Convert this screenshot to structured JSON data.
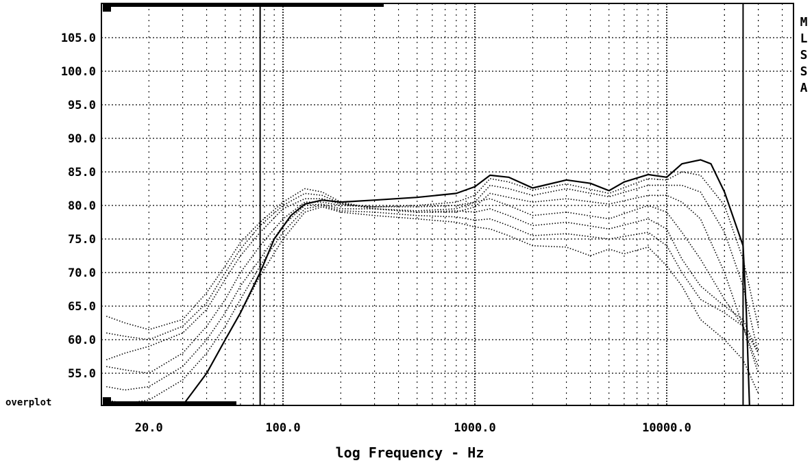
{
  "side_label": [
    "M",
    "L",
    "S",
    "S",
    "A"
  ],
  "overplot_label": "overplot",
  "chart_data": {
    "type": "line",
    "title": "",
    "xlabel": "log Frequency - Hz",
    "ylabel": "",
    "x_scale": "log",
    "xlim": [
      10,
      40000
    ],
    "ylim": [
      50,
      110
    ],
    "y_ticks": [
      55.0,
      60.0,
      65.0,
      70.0,
      75.0,
      80.0,
      85.0,
      90.0,
      95.0,
      100.0,
      105.0
    ],
    "y_tick_labels": [
      "55.0",
      "60.0",
      "65.0",
      "70.0",
      "75.0",
      "80.0",
      "85.0",
      "90.0",
      "95.0",
      "100.0",
      "105.0"
    ],
    "x_tick_labels": [
      {
        "value": 20,
        "label": "20.0"
      },
      {
        "value": 100,
        "label": "100.0"
      },
      {
        "value": 1000,
        "label": "1000.0"
      },
      {
        "value": 10000,
        "label": "10000.0"
      }
    ],
    "grid": true,
    "cursors": [
      76,
      25000
    ],
    "series": [
      {
        "style": "solid",
        "points": [
          [
            30,
            50
          ],
          [
            40,
            55
          ],
          [
            50,
            60
          ],
          [
            60,
            64
          ],
          [
            76,
            70
          ],
          [
            90,
            75
          ],
          [
            110,
            78.5
          ],
          [
            130,
            80.2
          ],
          [
            160,
            80.8
          ],
          [
            200,
            80.5
          ],
          [
            300,
            80.8
          ],
          [
            500,
            81.2
          ],
          [
            800,
            81.8
          ],
          [
            1000,
            82.8
          ],
          [
            1200,
            84.5
          ],
          [
            1500,
            84.2
          ],
          [
            2000,
            82.6
          ],
          [
            3000,
            83.8
          ],
          [
            4000,
            83.3
          ],
          [
            5000,
            82.2
          ],
          [
            6000,
            83.5
          ],
          [
            8000,
            84.6
          ],
          [
            10000,
            84.2
          ],
          [
            12000,
            86.2
          ],
          [
            15000,
            86.8
          ],
          [
            17000,
            86.2
          ],
          [
            20000,
            82
          ],
          [
            25000,
            74
          ],
          [
            26000,
            64
          ],
          [
            27000,
            50
          ]
        ]
      },
      {
        "style": "dotted",
        "points": [
          [
            12,
            63.5
          ],
          [
            15,
            62.5
          ],
          [
            20,
            61.5
          ],
          [
            30,
            63
          ],
          [
            40,
            67
          ],
          [
            50,
            71
          ],
          [
            60,
            74.5
          ],
          [
            76,
            77.5
          ],
          [
            100,
            80.5
          ],
          [
            130,
            82.5
          ],
          [
            160,
            82
          ],
          [
            200,
            80.5
          ],
          [
            300,
            79.5
          ],
          [
            500,
            79
          ],
          [
            800,
            79
          ],
          [
            1000,
            79.8
          ],
          [
            1200,
            81.8
          ],
          [
            1500,
            81.2
          ],
          [
            2000,
            80.5
          ],
          [
            3000,
            81
          ],
          [
            5000,
            80.2
          ],
          [
            8000,
            81.5
          ],
          [
            10000,
            81.5
          ],
          [
            12000,
            80.5
          ],
          [
            15000,
            78
          ],
          [
            20000,
            70
          ],
          [
            25000,
            62
          ],
          [
            30000,
            55
          ]
        ]
      },
      {
        "style": "dotted",
        "points": [
          [
            12,
            61
          ],
          [
            15,
            60.5
          ],
          [
            20,
            60
          ],
          [
            30,
            62
          ],
          [
            40,
            65.5
          ],
          [
            50,
            70
          ],
          [
            60,
            73.5
          ],
          [
            76,
            77
          ],
          [
            100,
            80
          ],
          [
            130,
            81.8
          ],
          [
            160,
            81.5
          ],
          [
            200,
            80.3
          ],
          [
            300,
            79.5
          ],
          [
            500,
            79.2
          ],
          [
            800,
            79.5
          ],
          [
            1000,
            80.5
          ],
          [
            1200,
            83
          ],
          [
            1500,
            82.5
          ],
          [
            2000,
            81.5
          ],
          [
            3000,
            82.5
          ],
          [
            5000,
            81.3
          ],
          [
            8000,
            83
          ],
          [
            10000,
            83
          ],
          [
            12000,
            83
          ],
          [
            15000,
            82
          ],
          [
            20000,
            76
          ],
          [
            25000,
            68
          ],
          [
            30000,
            58
          ]
        ]
      },
      {
        "style": "dotted",
        "points": [
          [
            12,
            57
          ],
          [
            15,
            58
          ],
          [
            20,
            59
          ],
          [
            30,
            61
          ],
          [
            40,
            64.5
          ],
          [
            50,
            69
          ],
          [
            60,
            72.5
          ],
          [
            76,
            76
          ],
          [
            100,
            79.5
          ],
          [
            130,
            81
          ],
          [
            160,
            81
          ],
          [
            200,
            80.2
          ],
          [
            300,
            79.8
          ],
          [
            500,
            80
          ],
          [
            800,
            80.5
          ],
          [
            1000,
            81.5
          ],
          [
            1200,
            84
          ],
          [
            1500,
            83.5
          ],
          [
            2000,
            82.3
          ],
          [
            3000,
            83.2
          ],
          [
            5000,
            81.8
          ],
          [
            8000,
            84
          ],
          [
            10000,
            83.8
          ],
          [
            12000,
            85
          ],
          [
            15000,
            84.5
          ],
          [
            20000,
            80
          ],
          [
            25000,
            72
          ],
          [
            30000,
            62
          ]
        ]
      },
      {
        "style": "dotted",
        "points": [
          [
            12,
            56
          ],
          [
            15,
            55.5
          ],
          [
            20,
            55
          ],
          [
            30,
            58
          ],
          [
            40,
            62
          ],
          [
            50,
            66
          ],
          [
            60,
            70
          ],
          [
            76,
            74
          ],
          [
            100,
            78
          ],
          [
            130,
            80.5
          ],
          [
            160,
            80.5
          ],
          [
            200,
            80
          ],
          [
            300,
            79.8
          ],
          [
            500,
            79.8
          ],
          [
            800,
            80
          ],
          [
            1000,
            80.5
          ],
          [
            1200,
            81
          ],
          [
            1500,
            80
          ],
          [
            2000,
            78.5
          ],
          [
            3000,
            79
          ],
          [
            5000,
            78
          ],
          [
            8000,
            80
          ],
          [
            10000,
            79
          ],
          [
            12000,
            76
          ],
          [
            15000,
            72
          ],
          [
            20000,
            66
          ],
          [
            25000,
            62
          ],
          [
            30000,
            58
          ]
        ]
      },
      {
        "style": "dotted",
        "points": [
          [
            12,
            53
          ],
          [
            15,
            52.5
          ],
          [
            20,
            53
          ],
          [
            30,
            56
          ],
          [
            40,
            60
          ],
          [
            50,
            64
          ],
          [
            60,
            68
          ],
          [
            76,
            72
          ],
          [
            100,
            77
          ],
          [
            130,
            80
          ],
          [
            160,
            80.2
          ],
          [
            200,
            79.5
          ],
          [
            300,
            79.5
          ],
          [
            500,
            79
          ],
          [
            800,
            79.2
          ],
          [
            1000,
            79
          ],
          [
            1200,
            79.5
          ],
          [
            1500,
            78.5
          ],
          [
            2000,
            77
          ],
          [
            3000,
            77.5
          ],
          [
            5000,
            76.5
          ],
          [
            8000,
            78
          ],
          [
            10000,
            76.5
          ],
          [
            12000,
            72
          ],
          [
            15000,
            68
          ],
          [
            20000,
            65
          ],
          [
            25000,
            63
          ],
          [
            30000,
            58
          ]
        ]
      },
      {
        "style": "dotted",
        "points": [
          [
            12,
            51
          ],
          [
            15,
            50.5
          ],
          [
            20,
            51
          ],
          [
            30,
            54
          ],
          [
            40,
            58
          ],
          [
            50,
            62
          ],
          [
            60,
            66
          ],
          [
            76,
            71
          ],
          [
            100,
            76
          ],
          [
            130,
            79.5
          ],
          [
            160,
            80
          ],
          [
            200,
            79.2
          ],
          [
            300,
            79
          ],
          [
            500,
            78.5
          ],
          [
            800,
            78.3
          ],
          [
            1000,
            77.8
          ],
          [
            1200,
            78
          ],
          [
            1500,
            77
          ],
          [
            2000,
            75.5
          ],
          [
            3000,
            75.8
          ],
          [
            5000,
            75
          ],
          [
            8000,
            76
          ],
          [
            10000,
            74
          ],
          [
            12000,
            70
          ],
          [
            15000,
            66
          ],
          [
            20000,
            64
          ],
          [
            25000,
            62
          ],
          [
            30000,
            56
          ]
        ]
      },
      {
        "style": "dotted",
        "points": [
          [
            40,
            55
          ],
          [
            50,
            60
          ],
          [
            60,
            64
          ],
          [
            76,
            69.5
          ],
          [
            100,
            75
          ],
          [
            130,
            79
          ],
          [
            160,
            79.8
          ],
          [
            200,
            79
          ],
          [
            300,
            78.5
          ],
          [
            500,
            78
          ],
          [
            800,
            77.5
          ],
          [
            1000,
            76.8
          ],
          [
            1200,
            76.5
          ],
          [
            1500,
            75.5
          ],
          [
            2000,
            74
          ],
          [
            3000,
            73.8
          ],
          [
            4000,
            72.5
          ],
          [
            5000,
            73.5
          ],
          [
            6000,
            72.8
          ],
          [
            8000,
            73.8
          ],
          [
            10000,
            71
          ],
          [
            12000,
            68
          ],
          [
            15000,
            63
          ],
          [
            20000,
            60
          ],
          [
            25000,
            57
          ],
          [
            30000,
            52
          ]
        ]
      }
    ]
  }
}
